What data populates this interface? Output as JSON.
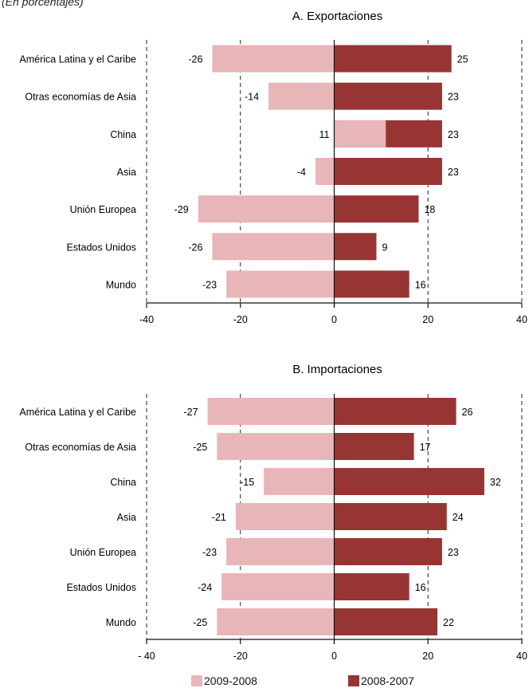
{
  "subtitle": "(En porcentajes)",
  "colors": {
    "s2009": "#e8b6b8",
    "s2008": "#973535"
  },
  "legend": [
    {
      "name": "2009-2008",
      "color": "#e8b6b8"
    },
    {
      "name": "2008-2007",
      "color": "#973535"
    }
  ],
  "chart_data": [
    {
      "type": "bar",
      "orientation": "horizontal",
      "title": "A. Exportaciones",
      "categories": [
        "América Latina y el Caribe",
        "Otras economías de Asia",
        "China",
        "Asia",
        "Unión Europea",
        "Estados Unidos",
        "Mundo"
      ],
      "series": [
        {
          "name": "2009-2008",
          "values": [
            -26,
            -14,
            11,
            -4,
            -29,
            -26,
            -23
          ]
        },
        {
          "name": "2008-2007",
          "values": [
            25,
            23,
            23,
            23,
            18,
            9,
            16
          ]
        }
      ],
      "xlim": [
        -40,
        40
      ],
      "xticks": [
        "-40",
        "-20",
        "0",
        "20",
        "40"
      ],
      "grid": "vertical dashed"
    },
    {
      "type": "bar",
      "orientation": "horizontal",
      "title": "B. Importaciones",
      "categories": [
        "América Latina y el Caribe",
        "Otras economías de Asia",
        "China",
        "Asia",
        "Unión Europea",
        "Estados Unidos",
        "Mundo"
      ],
      "series": [
        {
          "name": "2009-2008",
          "values": [
            -27,
            -25,
            -15,
            -21,
            -23,
            -24,
            -25
          ]
        },
        {
          "name": "2008-2007",
          "values": [
            26,
            17,
            32,
            24,
            23,
            16,
            22
          ]
        }
      ],
      "xlim": [
        -40,
        40
      ],
      "xticks": [
        "- 40",
        "-20",
        "0",
        "20",
        "40"
      ],
      "grid": "vertical dashed"
    }
  ]
}
